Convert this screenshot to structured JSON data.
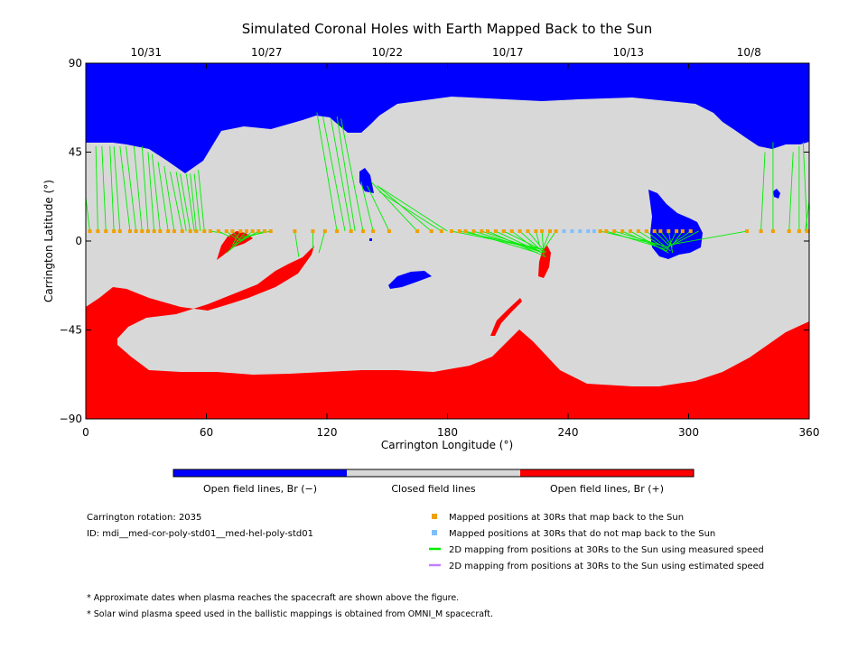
{
  "chart_data": {
    "type": "map",
    "title": "Simulated Coronal Holes with Earth Mapped Back to the Sun",
    "xlabel": "Carrington Longitude (°)",
    "ylabel": "Carrington Latitude (°)",
    "xlim": [
      0,
      360
    ],
    "ylim": [
      -90,
      90
    ],
    "x_ticks": [
      0,
      60,
      120,
      180,
      240,
      300,
      360
    ],
    "y_ticks": [
      -90,
      -45,
      0,
      45,
      90
    ],
    "dates": [
      {
        "label": "10/31",
        "lon": 30
      },
      {
        "label": "10/27",
        "lon": 90
      },
      {
        "label": "10/22",
        "lon": 150
      },
      {
        "label": "10/17",
        "lon": 210
      },
      {
        "label": "10/13",
        "lon": 270
      },
      {
        "label": "10/8",
        "lon": 330
      }
    ],
    "colors": {
      "open_negative": "#0000ff",
      "closed": "#d8d8d8",
      "open_positive": "#ff0000",
      "mapped": "#f0a000",
      "not_mapped": "#80bfff",
      "measured_line": "#00ee00",
      "estimated_line": "#c080ff"
    },
    "colorbar_labels": [
      "Open field lines, Br (−)",
      "Closed field lines",
      "Open field lines, Br (+)"
    ],
    "mapped_positions": [
      [
        2,
        5
      ],
      [
        6,
        5
      ],
      [
        10,
        5
      ],
      [
        14,
        5
      ],
      [
        17,
        5
      ],
      [
        22,
        5
      ],
      [
        25,
        5
      ],
      [
        28,
        5
      ],
      [
        31,
        5
      ],
      [
        34,
        5
      ],
      [
        37,
        5
      ],
      [
        41,
        5
      ],
      [
        44,
        5
      ],
      [
        48,
        5
      ],
      [
        52,
        5
      ],
      [
        55,
        5
      ],
      [
        59,
        5
      ],
      [
        62,
        5
      ],
      [
        66,
        5
      ],
      [
        70,
        5
      ],
      [
        73,
        5
      ],
      [
        77,
        5
      ],
      [
        80,
        5
      ],
      [
        83,
        5
      ],
      [
        86,
        5
      ],
      [
        89,
        5
      ],
      [
        92,
        5
      ],
      [
        104,
        5
      ],
      [
        113,
        5
      ],
      [
        119,
        5
      ],
      [
        125,
        5
      ],
      [
        132,
        5
      ],
      [
        138,
        5
      ],
      [
        143,
        5
      ],
      [
        151,
        5
      ],
      [
        165,
        5
      ],
      [
        172,
        5
      ],
      [
        177,
        5
      ],
      [
        182,
        5
      ],
      [
        186,
        5
      ],
      [
        189,
        5
      ],
      [
        193,
        5
      ],
      [
        197,
        5
      ],
      [
        200,
        5
      ],
      [
        204,
        5
      ],
      [
        208,
        5
      ],
      [
        212,
        5
      ],
      [
        216,
        5
      ],
      [
        220,
        5
      ],
      [
        224,
        5
      ],
      [
        227,
        5
      ],
      [
        231,
        5
      ],
      [
        234,
        5
      ],
      [
        256,
        5
      ],
      [
        259,
        5
      ],
      [
        263,
        5
      ],
      [
        267,
        5
      ],
      [
        271,
        5
      ],
      [
        275,
        5
      ],
      [
        279,
        5
      ],
      [
        283,
        5
      ],
      [
        286,
        5
      ],
      [
        290,
        5
      ],
      [
        294,
        5
      ],
      [
        297,
        5
      ],
      [
        301,
        5
      ],
      [
        329,
        5
      ],
      [
        336,
        5
      ],
      [
        342,
        5
      ],
      [
        350,
        5
      ],
      [
        355,
        5
      ],
      [
        359,
        5
      ]
    ],
    "unmapped_positions": [
      [
        238,
        5
      ],
      [
        242,
        5
      ],
      [
        246,
        5
      ],
      [
        250,
        5
      ],
      [
        253,
        5
      ]
    ],
    "mapping_lines": [
      [
        2,
        5,
        0,
        22
      ],
      [
        6,
        5,
        5,
        48
      ],
      [
        10,
        5,
        8,
        48
      ],
      [
        14,
        5,
        12,
        48
      ],
      [
        17,
        5,
        14,
        48
      ],
      [
        22,
        5,
        17,
        48
      ],
      [
        25,
        5,
        20,
        48
      ],
      [
        28,
        5,
        24,
        48
      ],
      [
        31,
        5,
        28,
        48
      ],
      [
        34,
        5,
        31,
        45
      ],
      [
        37,
        5,
        33,
        44
      ],
      [
        41,
        5,
        36,
        40
      ],
      [
        44,
        5,
        39,
        38
      ],
      [
        48,
        5,
        42,
        35
      ],
      [
        50,
        5,
        45,
        35
      ],
      [
        52,
        5,
        47,
        34
      ],
      [
        54,
        5,
        50,
        34
      ],
      [
        55,
        5,
        52,
        34
      ],
      [
        57,
        5,
        54,
        34
      ],
      [
        59,
        5,
        56,
        36
      ],
      [
        62,
        5,
        68,
        4
      ],
      [
        66,
        5,
        72,
        2
      ],
      [
        70,
        5,
        75,
        1
      ],
      [
        73,
        5,
        77,
        0
      ],
      [
        77,
        5,
        73,
        -2
      ],
      [
        80,
        5,
        72,
        -4
      ],
      [
        83,
        5,
        70,
        -6
      ],
      [
        86,
        5,
        74,
        -2
      ],
      [
        89,
        5,
        75,
        0
      ],
      [
        92,
        5,
        78,
        2
      ],
      [
        104,
        5,
        106,
        -8
      ],
      [
        113,
        5,
        113,
        -4
      ],
      [
        119,
        5,
        116,
        -6
      ],
      [
        125,
        5,
        115,
        65
      ],
      [
        129,
        5,
        118,
        63
      ],
      [
        132,
        5,
        122,
        62
      ],
      [
        134,
        5,
        125,
        63
      ],
      [
        138,
        5,
        127,
        62
      ],
      [
        143,
        5,
        137,
        30
      ],
      [
        151,
        5,
        140,
        28
      ],
      [
        165,
        5,
        142,
        30
      ],
      [
        172,
        5,
        145,
        28
      ],
      [
        177,
        5,
        146,
        25
      ],
      [
        180,
        5,
        145,
        28
      ],
      [
        182,
        5,
        226,
        -4
      ],
      [
        186,
        5,
        227,
        -4
      ],
      [
        189,
        5,
        225,
        -6
      ],
      [
        193,
        5,
        228,
        -6
      ],
      [
        197,
        5,
        226,
        -5
      ],
      [
        200,
        5,
        229,
        -8
      ],
      [
        204,
        5,
        227,
        -6
      ],
      [
        208,
        5,
        226,
        -4
      ],
      [
        212,
        5,
        225,
        -5
      ],
      [
        216,
        5,
        228,
        -6
      ],
      [
        220,
        5,
        229,
        -6
      ],
      [
        224,
        5,
        226,
        -3
      ],
      [
        227,
        5,
        228,
        -8
      ],
      [
        231,
        5,
        227,
        -5
      ],
      [
        234,
        5,
        228,
        -4
      ],
      [
        256,
        5,
        290,
        -3
      ],
      [
        259,
        5,
        288,
        -4
      ],
      [
        263,
        5,
        286,
        -2
      ],
      [
        267,
        5,
        289,
        -5
      ],
      [
        271,
        5,
        290,
        -6
      ],
      [
        275,
        5,
        289,
        -4
      ],
      [
        279,
        5,
        291,
        -5
      ],
      [
        283,
        5,
        290,
        -2
      ],
      [
        286,
        5,
        292,
        -3
      ],
      [
        290,
        5,
        292,
        -6
      ],
      [
        294,
        5,
        289,
        -5
      ],
      [
        297,
        5,
        292,
        -2
      ],
      [
        301,
        5,
        290,
        -3
      ],
      [
        305,
        5,
        292,
        -2
      ],
      [
        329,
        5,
        290,
        -2
      ],
      [
        336,
        5,
        338,
        45
      ],
      [
        342,
        5,
        342,
        50
      ],
      [
        350,
        5,
        352,
        45
      ],
      [
        355,
        5,
        355,
        48
      ],
      [
        359,
        5,
        357,
        50
      ],
      [
        358,
        5,
        360,
        20
      ]
    ]
  },
  "notes": {
    "rotation": "Carrington rotation: 2035",
    "id": "ID: mdi__med-cor-poly-std01__med-hel-poly-std01",
    "footnote1": "* Approximate dates when plasma reaches the spacecraft are shown above the figure.",
    "footnote2": "* Solar wind plasma speed used in the ballistic mappings is obtained from OMNI_M spacecraft."
  },
  "legend": [
    {
      "kind": "square",
      "color": "#f0a000",
      "label": "Mapped positions at 30Rs that map back to the Sun"
    },
    {
      "kind": "square",
      "color": "#80bfff",
      "label": "Mapped positions at 30Rs that do not map back to the Sun"
    },
    {
      "kind": "line",
      "color": "#00ee00",
      "label": "2D mapping from positions at 30Rs to the Sun using measured speed"
    },
    {
      "kind": "line",
      "color": "#c080ff",
      "label": "2D mapping from positions at 30Rs to the Sun using estimated speed"
    }
  ]
}
